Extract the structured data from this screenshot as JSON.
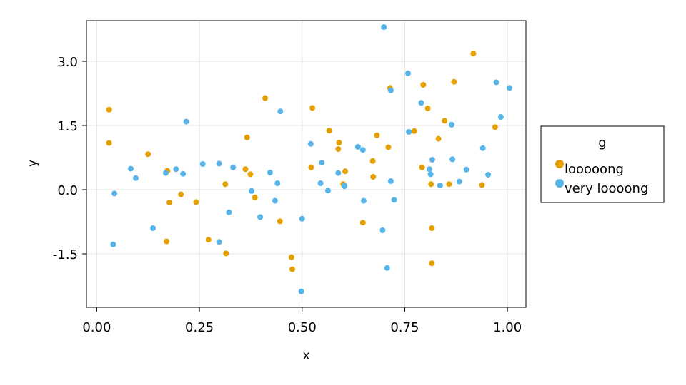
{
  "chart_data": {
    "type": "scatter",
    "xlabel": "x",
    "ylabel": "y",
    "xlim": [
      -0.025,
      1.045
    ],
    "ylim": [
      -2.75,
      3.95
    ],
    "x_ticks": [
      0.0,
      0.25,
      0.5,
      0.75,
      1.0
    ],
    "x_tick_labels": [
      "0.00",
      "0.25",
      "0.50",
      "0.75",
      "1.00"
    ],
    "y_ticks": [
      -1.5,
      0.0,
      1.5,
      3.0
    ],
    "y_tick_labels": [
      "-1.5",
      "0.0",
      "1.5",
      "3.0"
    ],
    "grid": true,
    "legend": {
      "title": "g",
      "placement": "right"
    },
    "series": [
      {
        "name": "looooong",
        "color": "#e69f00",
        "points": [
          [
            0.03,
            1.87
          ],
          [
            0.03,
            1.09
          ],
          [
            0.125,
            0.83
          ],
          [
            0.17,
            -1.21
          ],
          [
            0.172,
            0.44
          ],
          [
            0.177,
            -0.3
          ],
          [
            0.205,
            -0.11
          ],
          [
            0.242,
            -0.29
          ],
          [
            0.272,
            -1.17
          ],
          [
            0.313,
            0.13
          ],
          [
            0.315,
            -1.49
          ],
          [
            0.362,
            0.48
          ],
          [
            0.366,
            1.22
          ],
          [
            0.374,
            0.36
          ],
          [
            0.385,
            -0.18
          ],
          [
            0.41,
            2.14
          ],
          [
            0.446,
            -0.74
          ],
          [
            0.474,
            -1.58
          ],
          [
            0.476,
            -1.86
          ],
          [
            0.522,
            0.52
          ],
          [
            0.525,
            1.91
          ],
          [
            0.566,
            1.38
          ],
          [
            0.588,
            0.95
          ],
          [
            0.59,
            1.1
          ],
          [
            0.6,
            0.13
          ],
          [
            0.605,
            0.43
          ],
          [
            0.648,
            -0.77
          ],
          [
            0.672,
            0.67
          ],
          [
            0.673,
            0.3
          ],
          [
            0.682,
            1.27
          ],
          [
            0.71,
            0.99
          ],
          [
            0.714,
            2.38
          ],
          [
            0.773,
            1.37
          ],
          [
            0.792,
            0.52
          ],
          [
            0.795,
            2.45
          ],
          [
            0.806,
            1.9
          ],
          [
            0.814,
            0.13
          ],
          [
            0.816,
            -1.72
          ],
          [
            0.816,
            -0.9
          ],
          [
            0.832,
            1.19
          ],
          [
            0.847,
            1.61
          ],
          [
            0.858,
            0.13
          ],
          [
            0.87,
            2.52
          ],
          [
            0.917,
            3.18
          ],
          [
            0.938,
            0.11
          ],
          [
            0.97,
            1.46
          ]
        ]
      },
      {
        "name": "very loooong",
        "color": "#56b4e9",
        "points": [
          [
            0.04,
            -1.28
          ],
          [
            0.043,
            -0.09
          ],
          [
            0.083,
            0.49
          ],
          [
            0.095,
            0.27
          ],
          [
            0.137,
            -0.9
          ],
          [
            0.168,
            0.39
          ],
          [
            0.193,
            0.48
          ],
          [
            0.21,
            0.37
          ],
          [
            0.218,
            1.59
          ],
          [
            0.258,
            0.6
          ],
          [
            0.298,
            0.61
          ],
          [
            0.298,
            -1.22
          ],
          [
            0.322,
            -0.53
          ],
          [
            0.332,
            0.52
          ],
          [
            0.377,
            -0.03
          ],
          [
            0.398,
            -0.64
          ],
          [
            0.422,
            0.4
          ],
          [
            0.434,
            -0.26
          ],
          [
            0.44,
            0.15
          ],
          [
            0.447,
            1.83
          ],
          [
            0.5,
            -0.68
          ],
          [
            0.498,
            -2.38
          ],
          [
            0.521,
            1.07
          ],
          [
            0.545,
            0.15
          ],
          [
            0.548,
            0.63
          ],
          [
            0.563,
            -0.02
          ],
          [
            0.588,
            0.39
          ],
          [
            0.603,
            0.1
          ],
          [
            0.603,
            0.08
          ],
          [
            0.636,
            1.0
          ],
          [
            0.648,
            0.93
          ],
          [
            0.65,
            -0.26
          ],
          [
            0.696,
            -0.95
          ],
          [
            0.699,
            3.8
          ],
          [
            0.707,
            -1.83
          ],
          [
            0.716,
            0.2
          ],
          [
            0.716,
            2.32
          ],
          [
            0.724,
            -0.24
          ],
          [
            0.758,
            2.72
          ],
          [
            0.76,
            1.35
          ],
          [
            0.79,
            2.03
          ],
          [
            0.81,
            0.48
          ],
          [
            0.813,
            0.36
          ],
          [
            0.817,
            0.7
          ],
          [
            0.836,
            0.1
          ],
          [
            0.864,
            1.52
          ],
          [
            0.866,
            0.71
          ],
          [
            0.883,
            0.19
          ],
          [
            0.9,
            0.47
          ],
          [
            0.94,
            0.97
          ],
          [
            0.953,
            0.35
          ],
          [
            0.973,
            2.51
          ],
          [
            0.984,
            1.7
          ],
          [
            1.005,
            2.38
          ]
        ]
      }
    ]
  }
}
